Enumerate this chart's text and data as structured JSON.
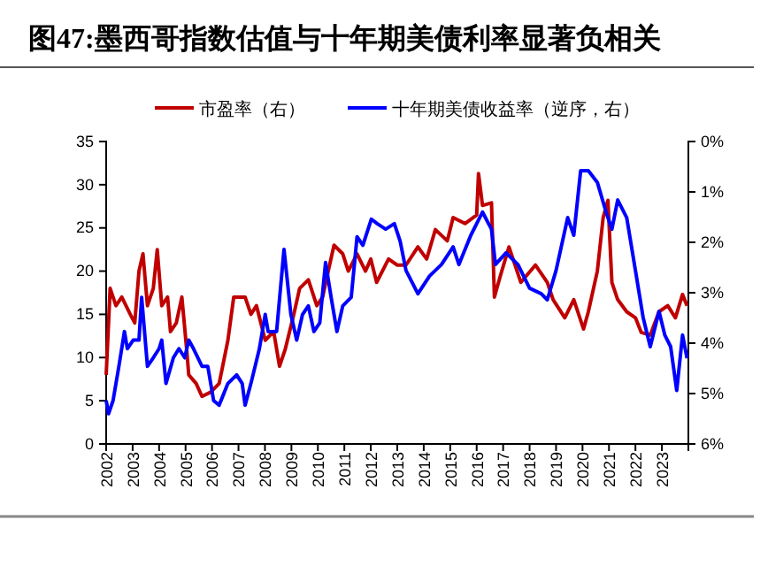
{
  "chart_data": {
    "type": "line",
    "title": "图47:墨西哥指数估值与十年期美债利率显著负相关",
    "legend": "top",
    "xlim": [
      2002,
      2024
    ],
    "xticks": [
      2002,
      2003,
      2004,
      2005,
      2006,
      2007,
      2008,
      2009,
      2010,
      2011,
      2012,
      2013,
      2014,
      2015,
      2016,
      2017,
      2018,
      2019,
      2020,
      2021,
      2022,
      2023
    ],
    "ylim": [
      0,
      35
    ],
    "yticks": [
      0,
      5,
      10,
      15,
      20,
      25,
      30,
      35
    ],
    "y2lim": [
      6,
      0
    ],
    "y2ticks": [
      {
        "value": 0,
        "label": "0%"
      },
      {
        "value": 1,
        "label": "1%"
      },
      {
        "value": 2,
        "label": "2%"
      },
      {
        "value": 3,
        "label": "3%"
      },
      {
        "value": 4,
        "label": "4%"
      },
      {
        "value": 5,
        "label": "5%"
      },
      {
        "value": 6,
        "label": "6%"
      }
    ],
    "series": [
      {
        "name": "市盈率（右）",
        "color": "#c00000",
        "x": [
          2002.0,
          2002.15,
          2002.37,
          2002.59,
          2002.91,
          2003.08,
          2003.24,
          2003.39,
          2003.56,
          2003.78,
          2003.93,
          2004.1,
          2004.32,
          2004.43,
          2004.65,
          2004.86,
          2005.04,
          2005.12,
          2005.4,
          2005.62,
          2005.95,
          2006.27,
          2006.6,
          2006.82,
          2007.25,
          2007.47,
          2007.68,
          2008.01,
          2008.33,
          2008.55,
          2008.77,
          2009.09,
          2009.31,
          2009.64,
          2009.96,
          2010.18,
          2010.39,
          2010.61,
          2010.94,
          2011.15,
          2011.48,
          2011.8,
          2012.0,
          2012.22,
          2012.67,
          2013.0,
          2013.33,
          2013.78,
          2014.11,
          2014.44,
          2014.89,
          2015.11,
          2015.56,
          2016.0,
          2016.07,
          2016.22,
          2016.56,
          2016.67,
          2016.89,
          2017.22,
          2017.67,
          2018.22,
          2018.67,
          2018.89,
          2019.33,
          2019.67,
          2020.04,
          2020.22,
          2020.56,
          2020.78,
          2020.96,
          2021.11,
          2021.33,
          2021.67,
          2022.0,
          2022.22,
          2022.56,
          2022.89,
          2023.22,
          2023.51,
          2023.78,
          2023.95
        ],
        "values": [
          8,
          18,
          16,
          17,
          15,
          14,
          20,
          22,
          16,
          18,
          22.5,
          16,
          17,
          13,
          14,
          17,
          11,
          8,
          7,
          5.5,
          6,
          7,
          12,
          17,
          17,
          15,
          16,
          12,
          13,
          9,
          11,
          15,
          18,
          19,
          16,
          17,
          20,
          23,
          22,
          20,
          22,
          20,
          21.4,
          18.7,
          21.4,
          20.7,
          20.7,
          22.8,
          21.4,
          24.8,
          23.5,
          26.2,
          25.5,
          26.5,
          31.3,
          27.6,
          27.9,
          17,
          19.4,
          22.8,
          18.7,
          20.7,
          18.7,
          16.7,
          14.6,
          16.7,
          13.3,
          15.3,
          20,
          26.2,
          28.2,
          18.7,
          16.7,
          15.3,
          14.6,
          12.9,
          12.6,
          15.3,
          16,
          14.6,
          17.3,
          16
        ]
      },
      {
        "name": "十年期美债收益率（逆序，右）",
        "color": "#0000ff",
        "axis": "y2",
        "x": [
          2002.0,
          2002.09,
          2002.26,
          2002.48,
          2002.69,
          2002.8,
          2003.02,
          2003.24,
          2003.34,
          2003.56,
          2003.78,
          2004.0,
          2004.1,
          2004.26,
          2004.54,
          2004.75,
          2004.97,
          2005.12,
          2005.3,
          2005.62,
          2005.84,
          2006.06,
          2006.27,
          2006.6,
          2006.93,
          2007.14,
          2007.25,
          2007.47,
          2007.79,
          2008.01,
          2008.12,
          2008.44,
          2008.72,
          2008.98,
          2009.2,
          2009.42,
          2009.64,
          2009.85,
          2010.07,
          2010.29,
          2010.5,
          2010.72,
          2010.94,
          2011.26,
          2011.48,
          2011.7,
          2012.02,
          2012.24,
          2012.56,
          2012.89,
          2013.11,
          2013.33,
          2013.78,
          2014.22,
          2014.67,
          2015.11,
          2015.33,
          2015.78,
          2016.22,
          2016.56,
          2016.71,
          2017.11,
          2017.56,
          2018.0,
          2018.44,
          2018.67,
          2019.0,
          2019.44,
          2019.67,
          2019.93,
          2020.22,
          2020.56,
          2020.89,
          2021.11,
          2021.33,
          2021.67,
          2022.0,
          2022.29,
          2022.56,
          2022.89,
          2023.11,
          2023.33,
          2023.56,
          2023.78,
          2023.95
        ],
        "values": [
          5.14,
          5.4,
          5.14,
          4.46,
          3.77,
          4.11,
          3.94,
          3.94,
          3.09,
          4.46,
          4.29,
          4.11,
          3.94,
          4.8,
          4.29,
          4.11,
          4.29,
          3.94,
          4.11,
          4.46,
          4.46,
          5.14,
          5.23,
          4.8,
          4.63,
          4.8,
          5.23,
          4.8,
          4.11,
          3.43,
          3.77,
          3.77,
          2.14,
          3.43,
          3.94,
          3.43,
          3.26,
          3.77,
          3.6,
          2.4,
          3.09,
          3.77,
          3.26,
          3.09,
          1.89,
          2.06,
          1.54,
          1.63,
          1.74,
          1.63,
          1.98,
          2.56,
          3.02,
          2.67,
          2.44,
          2.09,
          2.44,
          1.86,
          1.4,
          1.74,
          2.44,
          2.21,
          2.44,
          2.91,
          3.02,
          3.14,
          2.56,
          1.51,
          1.86,
          0.58,
          0.58,
          0.81,
          1.4,
          1.74,
          1.16,
          1.51,
          2.56,
          3.49,
          4.07,
          3.37,
          3.84,
          4.07,
          4.94,
          3.84,
          4.3
        ]
      }
    ]
  }
}
